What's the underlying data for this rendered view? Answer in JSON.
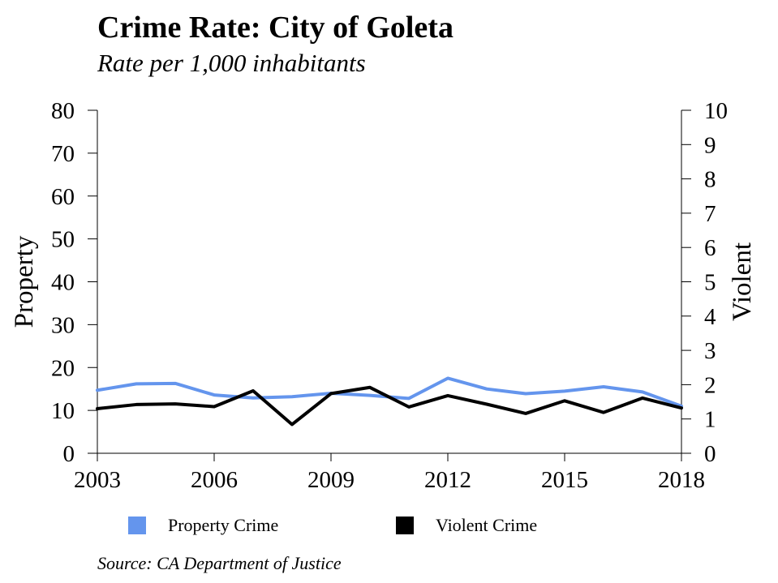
{
  "header": {
    "title": "Crime Rate: City of Goleta",
    "subtitle": "Rate per 1,000 inhabitants"
  },
  "footer": {
    "source": "Source: CA Department of Justice"
  },
  "legend": {
    "items": [
      {
        "label": "Property Crime",
        "color": "#6495ed"
      },
      {
        "label": "Violent Crime",
        "color": "#000000"
      }
    ]
  },
  "chart_data": {
    "type": "line",
    "title": "Crime Rate: City of Goleta",
    "subtitle": "Rate per 1,000 inhabitants",
    "x": [
      2003,
      2004,
      2005,
      2006,
      2007,
      2008,
      2009,
      2010,
      2011,
      2012,
      2013,
      2014,
      2015,
      2016,
      2017,
      2018
    ],
    "xticks": [
      "2003",
      "2006",
      "2009",
      "2012",
      "2015",
      "2018"
    ],
    "xlim": [
      2003,
      2018
    ],
    "ylabel_left": "Property",
    "ylabel_right": "Violent",
    "ylim_left": [
      0,
      80
    ],
    "ylim_right": [
      0,
      10
    ],
    "yticks_left": [
      "0",
      "10",
      "20",
      "30",
      "40",
      "50",
      "60",
      "70",
      "80"
    ],
    "yticks_right": [
      "0",
      "1",
      "2",
      "3",
      "4",
      "5",
      "6",
      "7",
      "8",
      "9",
      "10"
    ],
    "grid": false,
    "legend_position": "bottom",
    "series": [
      {
        "name": "Property Crime",
        "axis": "left",
        "color": "#6495ed",
        "values": [
          14.7,
          16.2,
          16.3,
          13.6,
          12.9,
          13.2,
          14.0,
          13.5,
          12.8,
          17.5,
          15.0,
          13.9,
          14.5,
          15.5,
          14.3,
          11.0
        ]
      },
      {
        "name": "Violent Crime",
        "axis": "right",
        "color": "#000000",
        "values": [
          1.3,
          1.42,
          1.44,
          1.36,
          1.82,
          0.84,
          1.74,
          1.92,
          1.35,
          1.68,
          1.43,
          1.16,
          1.53,
          1.19,
          1.61,
          1.32
        ]
      }
    ]
  }
}
